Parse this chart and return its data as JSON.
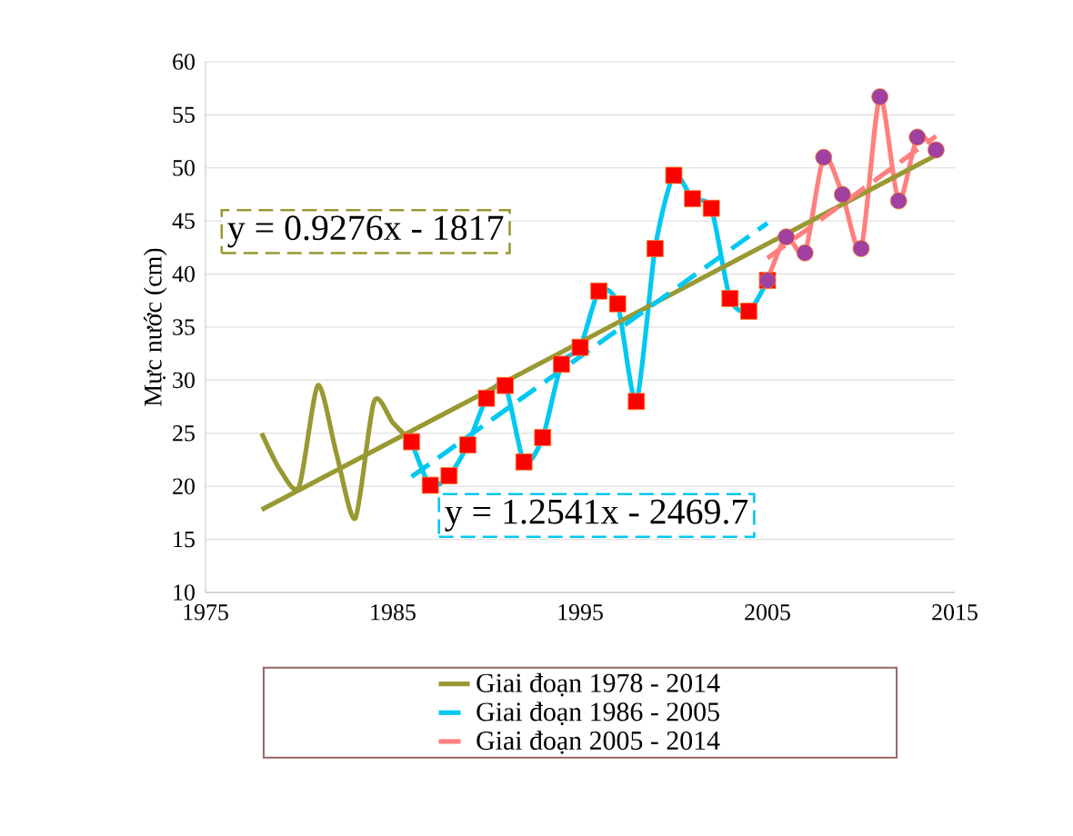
{
  "chart_data": {
    "type": "line",
    "ylabel": "Mực nước (cm)",
    "xlim": [
      1975,
      2015
    ],
    "ylim": [
      10,
      60
    ],
    "xticks": [
      1975,
      1985,
      1995,
      2005,
      2015
    ],
    "yticks": [
      10,
      15,
      20,
      25,
      30,
      35,
      40,
      45,
      50,
      55,
      60
    ],
    "grid": "y",
    "legend": "bottom",
    "annotations": [
      "y = 0.9276x - 1817",
      "y = 1.2541x - 2469.7"
    ],
    "series": [
      {
        "color": "#999933",
        "marker": "none",
        "x": [
          1978,
          1979,
          1980,
          1981,
          1982,
          1983,
          1984,
          1985,
          1986
        ],
        "values": [
          25,
          21.5,
          20,
          29.5,
          23,
          17,
          28,
          26,
          24.2
        ]
      },
      {
        "color": "#00c8f0",
        "marker": "square",
        "x": [
          1986,
          1987,
          1988,
          1989,
          1990,
          1991,
          1992,
          1993,
          1994,
          1995,
          1996,
          1997,
          1998,
          1999,
          2000,
          2001,
          2002,
          2003,
          2004,
          2005
        ],
        "values": [
          24.2,
          20.1,
          21,
          23.9,
          28.3,
          29.5,
          22.3,
          24.6,
          31.5,
          33.1,
          38.4,
          37.2,
          28,
          42.4,
          49.3,
          47.1,
          46.2,
          37.7,
          36.5,
          39.4
        ],
        "colors": [
          "#ff0000",
          "#ff0000",
          "#ff0000",
          "#ff0000",
          "#ff0000",
          "#ff0000",
          "#ff0000",
          "#ff0000",
          "#ff0000",
          "#ff0000",
          "#ff0000",
          "#ff0000",
          "#ff0000",
          "#ff0000",
          "#ff0000",
          "#ff0000",
          "#ff0000",
          "#ff0000",
          "#ff0000",
          "#ff0000"
        ]
      },
      {
        "color": "#ff7f7f",
        "marker": "circle",
        "x": [
          2005,
          2006,
          2007,
          2008,
          2009,
          2010,
          2011,
          2012,
          2013,
          2014
        ],
        "values": [
          39.4,
          43.5,
          42,
          51,
          47.5,
          42.4,
          56.7,
          46.9,
          52.9,
          51.7
        ],
        "colors": [
          "#a040a0",
          "#a040a0",
          "#a040a0",
          "#a040a0",
          "#a040a0",
          "#a040a0",
          "#a040a0",
          "#a040a0",
          "#a040a0",
          "#a040a0"
        ]
      },
      {
        "name": "Giai đoạn 1978 - 2014",
        "color": "#999933",
        "marker": "none",
        "line_style": "solid",
        "x": [
          1978,
          2014
        ],
        "values": [
          17.8,
          51.2
        ]
      },
      {
        "name": "Giai đoạn 1986 - 2005",
        "color": "#00c8f0",
        "marker": "none",
        "line_style": "dashed",
        "x": [
          1986,
          2005
        ],
        "values": [
          20.9,
          44.8
        ]
      },
      {
        "name": "Giai đoạn 2005 - 2014",
        "color": "#ff7f7f",
        "marker": "none",
        "line_style": "dashed",
        "x": [
          2005,
          2014
        ],
        "values": [
          41.5,
          53.0
        ]
      }
    ]
  }
}
